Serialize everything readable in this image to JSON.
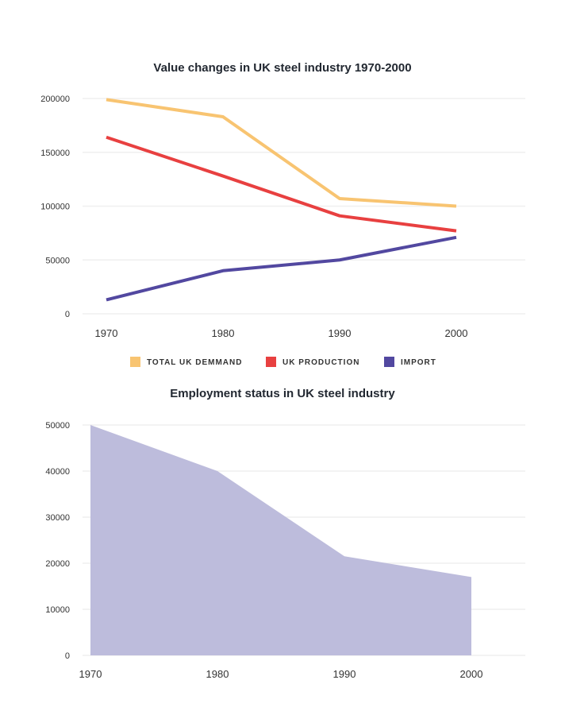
{
  "chart_data": [
    {
      "type": "line",
      "title": "Value changes in UK steel industry 1970-2000",
      "categories": [
        "1970",
        "1980",
        "1990",
        "2000"
      ],
      "ylim": [
        0,
        200000
      ],
      "yticks": [
        "0",
        "50000",
        "100000",
        "150000",
        "200000"
      ],
      "grid": true,
      "legend_placement": "bottom",
      "series": [
        {
          "name": "TOTAL UK DEMMAND",
          "color": "#f8c471",
          "values": [
            199000,
            183000,
            107000,
            100000
          ]
        },
        {
          "name": "UK PRODUCTION",
          "color": "#e84040",
          "values": [
            164000,
            128000,
            91000,
            77000
          ]
        },
        {
          "name": "IMPORT",
          "color": "#5248a0",
          "values": [
            13000,
            40000,
            50000,
            71000
          ]
        }
      ]
    },
    {
      "type": "area",
      "title": "Employment status in UK steel industry",
      "categories": [
        "1970",
        "1980",
        "1990",
        "2000"
      ],
      "ylim": [
        0,
        50000
      ],
      "yticks": [
        "0",
        "10000",
        "20000",
        "30000",
        "40000",
        "50000"
      ],
      "grid": true,
      "series": [
        {
          "color": "#b9b8da",
          "values": [
            50000,
            40000,
            21500,
            17000
          ]
        }
      ]
    }
  ]
}
